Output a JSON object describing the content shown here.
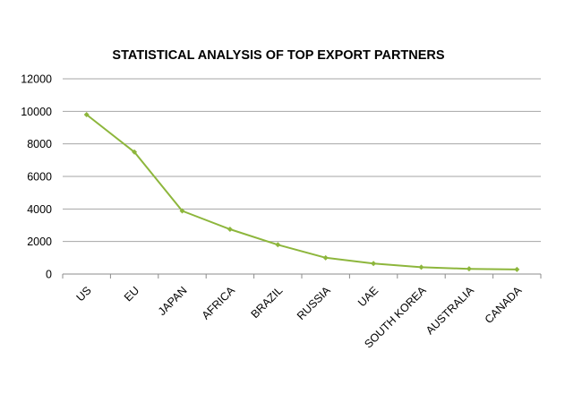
{
  "chart_data": {
    "type": "line",
    "title": "STATISTICAL ANALYSIS OF TOP EXPORT PARTNERS",
    "xlabel": "",
    "ylabel": "",
    "categories": [
      "US",
      "EU",
      "JAPAN",
      "AFRICA",
      "BRAZIL",
      "RUSSIA",
      "UAE",
      "SOUTH KOREA",
      "AUSTRALIA",
      "CANADA"
    ],
    "series": [
      {
        "values": [
          9800,
          7500,
          3880,
          2750,
          1800,
          1000,
          650,
          420,
          320,
          280
        ],
        "color": "#8db63c"
      }
    ],
    "ylim": [
      0,
      12000
    ],
    "yticks": [
      "0",
      "2000",
      "4000",
      "6000",
      "8000",
      "10000",
      "12000"
    ],
    "grid": true,
    "legend": "none"
  }
}
